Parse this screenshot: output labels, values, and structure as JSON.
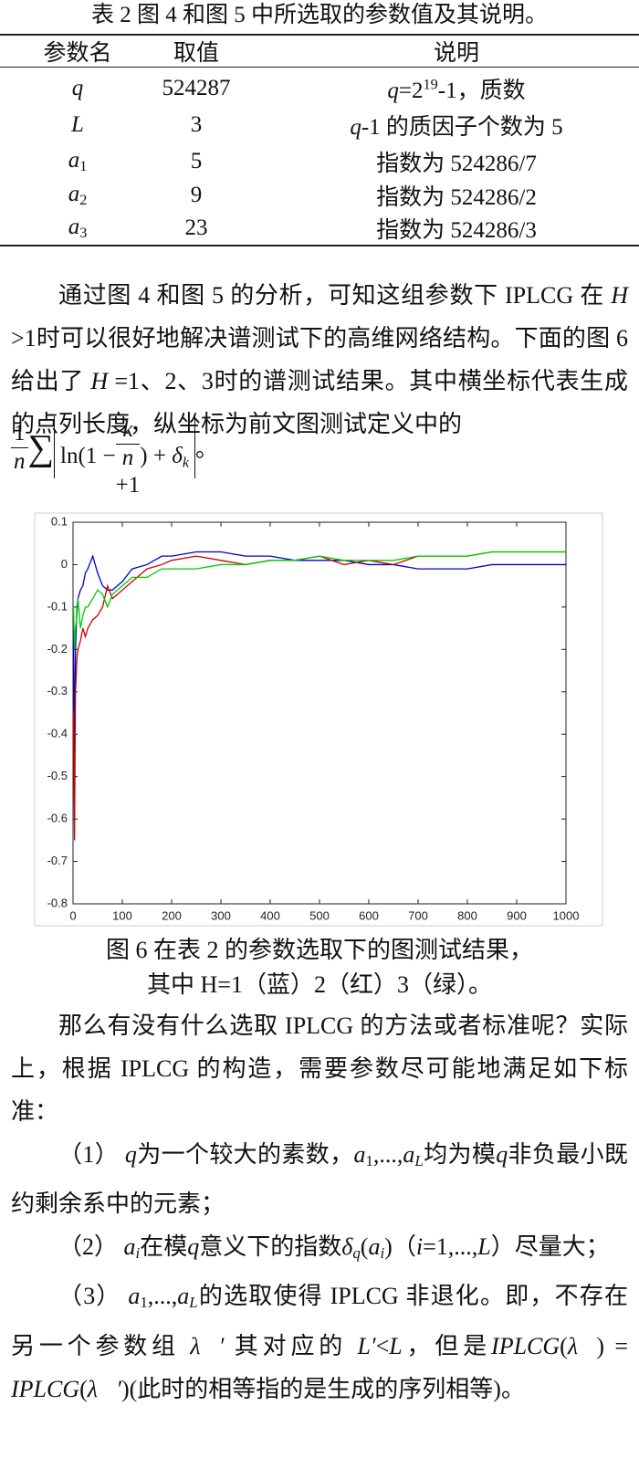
{
  "table": {
    "caption": "表 2 图 4 和图 5 中所选取的参数值及其说明。",
    "header": [
      "参数名",
      "取值",
      "说明"
    ],
    "rows": [
      {
        "name": "q",
        "value": 524287,
        "desc": [
          "q",
          "=2",
          "19",
          "-1，质数"
        ]
      },
      {
        "name": "L",
        "value": 3,
        "desc": [
          "q",
          "-1 的质因子个数为 5"
        ]
      },
      {
        "name": [
          "a",
          "1"
        ],
        "value": 5,
        "desc": [
          "指数为 524286/7"
        ]
      },
      {
        "name": [
          "a",
          "2"
        ],
        "value": 9,
        "desc": [
          "指数为 524286/2"
        ]
      },
      {
        "name": [
          "a",
          "3"
        ],
        "value": 23,
        "desc": [
          "指数为 524286/3"
        ]
      }
    ]
  },
  "paragraph1": [
    "通过图 4 和图 5 的分析，可知这组参数下 IPLCG 在 ",
    "H",
    " >1时可以很好地解决谱测试下的高维网络结构。下面的图 6 给出了 ",
    "H",
    " =1、2、3时的谱测试结果。其中横坐标代表生成的点列长度，纵坐标为前文图测试定义中的"
  ],
  "formula": [
    "1",
    "n",
    "∑",
    "ln(1 −",
    "k",
    "n",
    "+1",
    ") + ",
    "δ",
    "k",
    "。"
  ],
  "chart_data": {
    "type": "line",
    "x": [
      1,
      3,
      5,
      8,
      10,
      15,
      20,
      25,
      30,
      40,
      50,
      60,
      70,
      80,
      100,
      120,
      150,
      180,
      200,
      250,
      300,
      350,
      400,
      450,
      500,
      550,
      600,
      650,
      700,
      750,
      800,
      850,
      900,
      950,
      1000
    ],
    "series": [
      {
        "color": "#0000cc",
        "values": [
          -0.15,
          -0.45,
          -0.2,
          -0.1,
          -0.08,
          -0.06,
          -0.05,
          -0.02,
          -0.01,
          0.02,
          -0.02,
          -0.05,
          -0.06,
          -0.06,
          -0.04,
          -0.01,
          0.0,
          0.02,
          0.02,
          0.03,
          0.03,
          0.02,
          0.02,
          0.01,
          0.01,
          0.01,
          0.0,
          0.0,
          -0.01,
          -0.01,
          -0.01,
          0.0,
          0.0,
          0.0,
          0.0
        ]
      },
      {
        "color": "#cc0000",
        "values": [
          -0.35,
          -0.65,
          -0.3,
          -0.22,
          -0.2,
          -0.18,
          -0.15,
          -0.17,
          -0.15,
          -0.13,
          -0.12,
          -0.1,
          -0.05,
          -0.08,
          -0.06,
          -0.04,
          -0.01,
          0.0,
          0.01,
          0.02,
          0.01,
          0.0,
          0.01,
          0.01,
          0.02,
          0.0,
          0.01,
          0.0,
          0.02,
          0.02,
          0.02,
          0.03,
          0.03,
          0.03,
          0.03
        ]
      },
      {
        "color": "#00cc00",
        "values": [
          -0.1,
          -0.2,
          -0.15,
          -0.12,
          -0.08,
          -0.15,
          -0.12,
          -0.1,
          -0.1,
          -0.08,
          -0.06,
          -0.07,
          -0.1,
          -0.07,
          -0.05,
          -0.03,
          -0.03,
          -0.01,
          -0.01,
          -0.01,
          0.0,
          0.0,
          0.01,
          0.01,
          0.02,
          0.01,
          0.01,
          0.01,
          0.02,
          0.02,
          0.02,
          0.03,
          0.03,
          0.03,
          0.03
        ]
      }
    ],
    "xlim": [
      0,
      1000
    ],
    "xticks": [
      0,
      100,
      200,
      300,
      400,
      500,
      600,
      700,
      800,
      900,
      1000
    ],
    "ylim": [
      -0.8,
      0.1
    ],
    "yticks": [
      -0.8,
      -0.7,
      -0.6,
      -0.5,
      -0.4,
      -0.3,
      -0.2,
      -0.1,
      0,
      0.1
    ]
  },
  "caption": [
    "图 6 在表 2 的参数选取下的图测试结果，",
    "其中 H=1（蓝）2（红）3（绿）。"
  ],
  "paragraph2": "那么有没有什么选取 IPLCG 的方法或者标准呢？实际上，根据 IPLCG 的构造，需要参数尽可能地满足如下标准：",
  "item1": [
    "（1）",
    "q",
    "为一个较大的素数，",
    "a",
    "1",
    ",...,",
    "a",
    "L",
    "均为模",
    "q",
    "非负最小既约剩余系中的元素；"
  ],
  "item2": [
    "（2）",
    "a",
    "i",
    "在模",
    "q",
    "意义下的指数",
    "δ",
    "q",
    "(",
    "a",
    "i",
    ")（",
    "i",
    "=1,...,",
    "L",
    "）尽量大；"
  ],
  "item3": [
    "（3）",
    "a",
    "1",
    ",...,",
    "a",
    "L",
    "的选取使得 IPLCG 非退化。即，不存在另一个参数组",
    "λ⃗′",
    "其对应的",
    "L′",
    "<",
    "L",
    "，但是",
    "IPLCG",
    "(",
    "λ⃗",
    ") = ",
    "IPLCG",
    "(",
    "λ⃗′",
    ")",
    "(此时的相等指的是生成的序列相等)。"
  ]
}
